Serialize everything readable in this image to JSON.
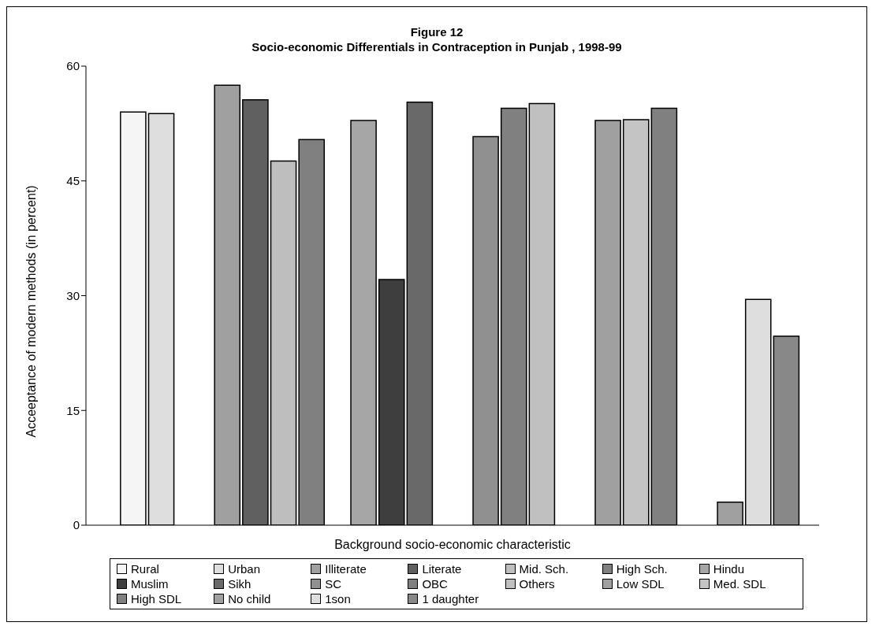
{
  "chart_data": {
    "type": "bar",
    "title": "Figure 12",
    "subtitle": "Socio-economic Differentials in Contraception in Punjab , 1998-99",
    "xlabel": "Background socio-economic characteristic",
    "ylabel": "Acceeptance of modern methods (in percent)",
    "categories": [
      null,
      null,
      null,
      null,
      null,
      null
    ],
    "series": [
      {
        "name": "Rural",
        "color": "#f5f5f5",
        "values": [
          54.0,
          null,
          null,
          null,
          null,
          null
        ]
      },
      {
        "name": "Urban",
        "color": "#dedede",
        "values": [
          53.8,
          null,
          null,
          null,
          null,
          null
        ]
      },
      {
        "name": "Illiterate",
        "color": "#a0a0a0",
        "values": [
          null,
          57.5,
          null,
          null,
          null,
          null
        ]
      },
      {
        "name": "Literate",
        "color": "#606060",
        "values": [
          null,
          55.6,
          null,
          null,
          null,
          null
        ]
      },
      {
        "name": "Mid. Sch.",
        "color": "#bebebe",
        "values": [
          null,
          47.6,
          null,
          null,
          null,
          null
        ]
      },
      {
        "name": "High Sch.",
        "color": "#808080",
        "values": [
          null,
          50.4,
          null,
          null,
          null,
          null
        ]
      },
      {
        "name": "Hindu",
        "color": "#a6a6a6",
        "values": [
          null,
          null,
          52.9,
          null,
          null,
          null
        ]
      },
      {
        "name": "Muslim",
        "color": "#3e3e3e",
        "values": [
          null,
          null,
          32.1,
          null,
          null,
          null
        ]
      },
      {
        "name": "Sikh",
        "color": "#696969",
        "values": [
          null,
          null,
          55.3,
          null,
          null,
          null
        ]
      },
      {
        "name": "SC",
        "color": "#909090",
        "values": [
          null,
          null,
          null,
          50.8,
          null,
          null
        ]
      },
      {
        "name": "OBC",
        "color": "#808080",
        "values": [
          null,
          null,
          null,
          54.5,
          null,
          null
        ]
      },
      {
        "name": "Others",
        "color": "#c0c0c0",
        "values": [
          null,
          null,
          null,
          55.1,
          null,
          null
        ]
      },
      {
        "name": "Low SDL",
        "color": "#a0a0a0",
        "values": [
          null,
          null,
          null,
          null,
          52.9,
          null
        ]
      },
      {
        "name": "Med. SDL",
        "color": "#c4c4c4",
        "values": [
          null,
          null,
          null,
          null,
          53.0,
          null
        ]
      },
      {
        "name": "High SDL",
        "color": "#808080",
        "values": [
          null,
          null,
          null,
          null,
          54.5,
          null
        ]
      },
      {
        "name": "No child",
        "color": "#a0a0a0",
        "values": [
          null,
          null,
          null,
          null,
          null,
          3.0
        ]
      },
      {
        "name": "1son",
        "color": "#dedede",
        "values": [
          null,
          null,
          null,
          null,
          null,
          29.5
        ]
      },
      {
        "name": "1 daughter",
        "color": "#888888",
        "values": [
          null,
          null,
          null,
          null,
          null,
          24.7
        ]
      }
    ],
    "ylim": [
      0,
      60
    ],
    "yticks": [
      0,
      15,
      30,
      45,
      60
    ],
    "legend": "bottom"
  }
}
